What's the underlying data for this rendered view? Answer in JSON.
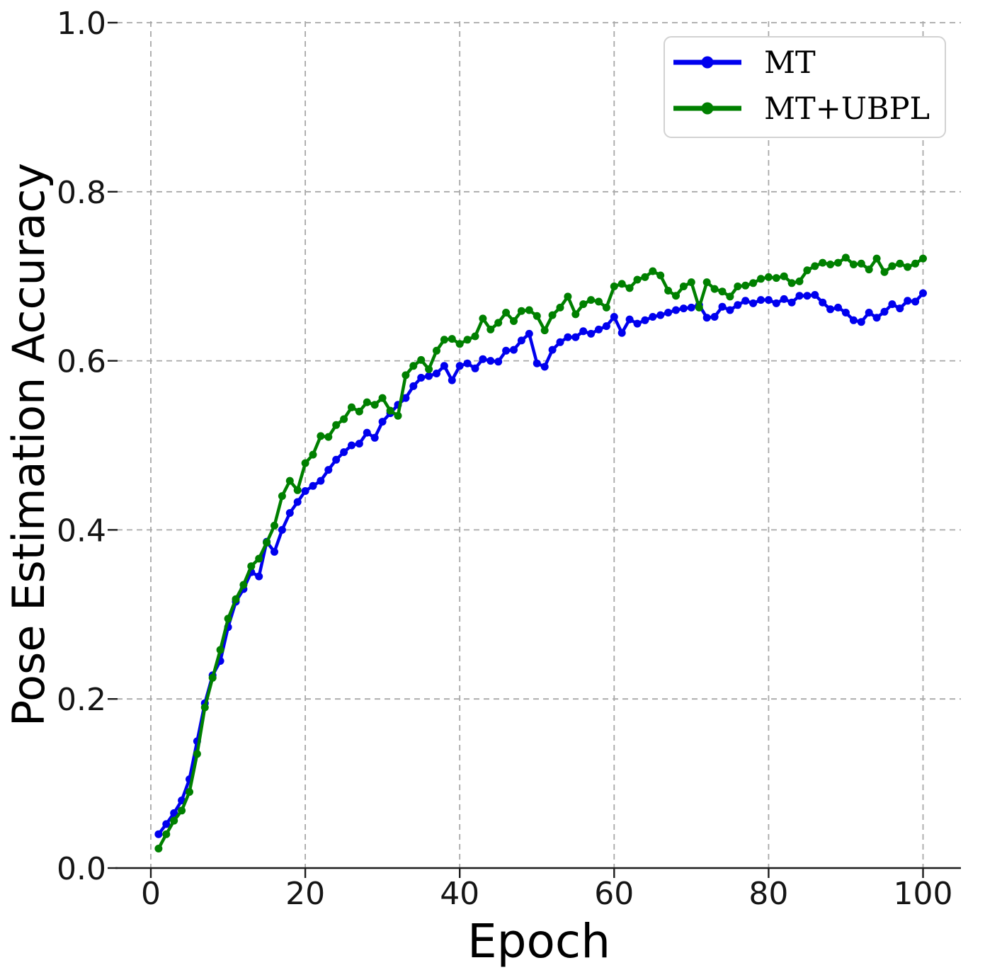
{
  "figure": {
    "background": "#ffffff",
    "axis_color": "#1c1c1c",
    "grid_color": "#a8a8a8"
  },
  "chart_data": {
    "type": "line",
    "title": "",
    "xlabel": "Epoch",
    "ylabel": "Pose Estimation Accuracy",
    "xlim": [
      -4.5,
      104.9
    ],
    "ylim": [
      0.0,
      1.0
    ],
    "xticks": [
      0,
      20,
      40,
      60,
      80,
      100
    ],
    "yticks": [
      0.0,
      0.2,
      0.4,
      0.6,
      0.8,
      1.0
    ],
    "ytick_labels": [
      "0.0",
      "0.2",
      "0.4",
      "0.6",
      "0.8",
      "1.0"
    ],
    "grid": "dashed",
    "legend_position": "upper-right",
    "marker": "circle",
    "x": [
      1,
      2,
      3,
      4,
      5,
      6,
      7,
      8,
      9,
      10,
      11,
      12,
      13,
      14,
      15,
      16,
      17,
      18,
      19,
      20,
      21,
      22,
      23,
      24,
      25,
      26,
      27,
      28,
      29,
      30,
      31,
      32,
      33,
      34,
      35,
      36,
      37,
      38,
      39,
      40,
      41,
      42,
      43,
      44,
      45,
      46,
      47,
      48,
      49,
      50,
      51,
      52,
      53,
      54,
      55,
      56,
      57,
      58,
      59,
      60,
      61,
      62,
      63,
      64,
      65,
      66,
      67,
      68,
      69,
      70,
      71,
      72,
      73,
      74,
      75,
      76,
      77,
      78,
      79,
      80,
      81,
      82,
      83,
      84,
      85,
      86,
      87,
      88,
      89,
      90,
      91,
      92,
      93,
      94,
      95,
      96,
      97,
      98,
      99,
      100
    ],
    "series": [
      {
        "name": "MT",
        "color": "#0000ee",
        "values": [
          0.04,
          0.052,
          0.065,
          0.08,
          0.105,
          0.15,
          0.195,
          0.228,
          0.245,
          0.285,
          0.315,
          0.33,
          0.35,
          0.345,
          0.386,
          0.374,
          0.4,
          0.42,
          0.433,
          0.446,
          0.452,
          0.458,
          0.471,
          0.483,
          0.492,
          0.5,
          0.502,
          0.515,
          0.509,
          0.528,
          0.538,
          0.548,
          0.556,
          0.57,
          0.58,
          0.582,
          0.585,
          0.594,
          0.577,
          0.594,
          0.597,
          0.591,
          0.602,
          0.6,
          0.599,
          0.612,
          0.613,
          0.624,
          0.632,
          0.597,
          0.593,
          0.613,
          0.622,
          0.628,
          0.628,
          0.635,
          0.632,
          0.637,
          0.641,
          0.652,
          0.633,
          0.649,
          0.644,
          0.648,
          0.652,
          0.654,
          0.657,
          0.66,
          0.662,
          0.663,
          0.666,
          0.651,
          0.652,
          0.664,
          0.66,
          0.666,
          0.671,
          0.668,
          0.672,
          0.672,
          0.668,
          0.673,
          0.669,
          0.677,
          0.677,
          0.678,
          0.669,
          0.661,
          0.663,
          0.657,
          0.648,
          0.646,
          0.657,
          0.651,
          0.658,
          0.667,
          0.662,
          0.671,
          0.67,
          0.68
        ]
      },
      {
        "name": "MT+UBPL",
        "color": "#008000",
        "values": [
          0.023,
          0.04,
          0.056,
          0.068,
          0.09,
          0.135,
          0.19,
          0.225,
          0.258,
          0.295,
          0.318,
          0.335,
          0.357,
          0.366,
          0.385,
          0.405,
          0.44,
          0.458,
          0.447,
          0.479,
          0.489,
          0.511,
          0.51,
          0.524,
          0.531,
          0.545,
          0.54,
          0.551,
          0.548,
          0.556,
          0.541,
          0.535,
          0.583,
          0.594,
          0.601,
          0.59,
          0.612,
          0.625,
          0.626,
          0.62,
          0.625,
          0.629,
          0.65,
          0.637,
          0.645,
          0.657,
          0.647,
          0.659,
          0.66,
          0.653,
          0.636,
          0.654,
          0.663,
          0.676,
          0.655,
          0.667,
          0.672,
          0.67,
          0.663,
          0.688,
          0.691,
          0.686,
          0.696,
          0.699,
          0.706,
          0.701,
          0.683,
          0.677,
          0.688,
          0.693,
          0.663,
          0.693,
          0.685,
          0.682,
          0.676,
          0.688,
          0.689,
          0.692,
          0.697,
          0.699,
          0.698,
          0.7,
          0.692,
          0.694,
          0.707,
          0.712,
          0.716,
          0.714,
          0.716,
          0.722,
          0.714,
          0.715,
          0.708,
          0.721,
          0.705,
          0.712,
          0.715,
          0.711,
          0.715,
          0.721
        ]
      }
    ]
  }
}
